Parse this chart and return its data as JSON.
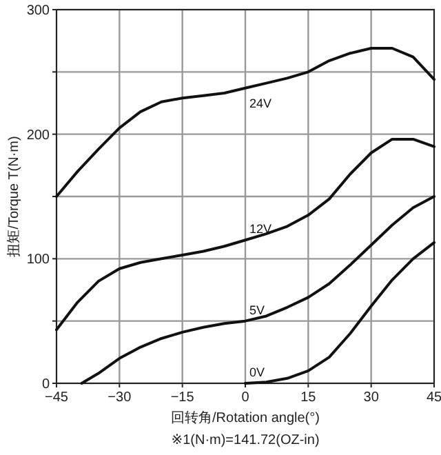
{
  "chart_data": {
    "type": "line",
    "xlabel": "回转角/Rotation angle(°)",
    "ylabel": "扭矩/Torque T(N·m)",
    "annotations": [
      "※1(N·m)=141.72(OZ-in)"
    ],
    "xlim": [
      -45,
      45
    ],
    "xticks": [
      {
        "value": -45,
        "label": "−45"
      },
      {
        "value": -30,
        "label": "−30"
      },
      {
        "value": -15,
        "label": "−15"
      },
      0,
      15,
      30,
      45
    ],
    "ylim": [
      0,
      300
    ],
    "yticks": [
      0,
      {
        "value": 50,
        "label": null
      },
      100,
      {
        "value": 150,
        "label": null
      },
      200,
      {
        "value": 250,
        "label": null
      },
      300
    ],
    "grid": true,
    "marker": "none",
    "line_style": "solid",
    "series": [
      {
        "name": "24V",
        "color": "#111111",
        "x": [
          -45,
          -40,
          -35,
          -30,
          -25,
          -20,
          -15,
          -10,
          -5,
          0,
          5,
          10,
          15,
          20,
          25,
          30,
          35,
          40,
          45
        ],
        "values": [
          150,
          170,
          188,
          205,
          218,
          226,
          229,
          231,
          233,
          237,
          241,
          245,
          250,
          259,
          265,
          269,
          269,
          262,
          244
        ]
      },
      {
        "name": "12V",
        "color": "#111111",
        "x": [
          -45,
          -40,
          -35,
          -30,
          -25,
          -20,
          -15,
          -10,
          -5,
          0,
          5,
          10,
          15,
          20,
          25,
          30,
          35,
          40,
          45
        ],
        "values": [
          43,
          65,
          82,
          92,
          97,
          100,
          103,
          106,
          110,
          115,
          120,
          126,
          135,
          148,
          168,
          185,
          196,
          196,
          190
        ]
      },
      {
        "name": "5V",
        "color": "#111111",
        "x": [
          -39,
          -35,
          -30,
          -25,
          -20,
          -15,
          -10,
          -5,
          0,
          5,
          10,
          15,
          20,
          25,
          30,
          35,
          40,
          45
        ],
        "values": [
          0,
          8,
          20,
          29,
          36,
          41,
          45,
          48,
          50,
          54,
          61,
          69,
          80,
          95,
          111,
          127,
          141,
          150
        ]
      },
      {
        "name": "0V",
        "color": "#111111",
        "x": [
          0,
          5,
          10,
          15,
          20,
          25,
          30,
          35,
          40,
          45
        ],
        "values": [
          0,
          1,
          4,
          10,
          21,
          40,
          62,
          83,
          100,
          113
        ]
      }
    ]
  }
}
